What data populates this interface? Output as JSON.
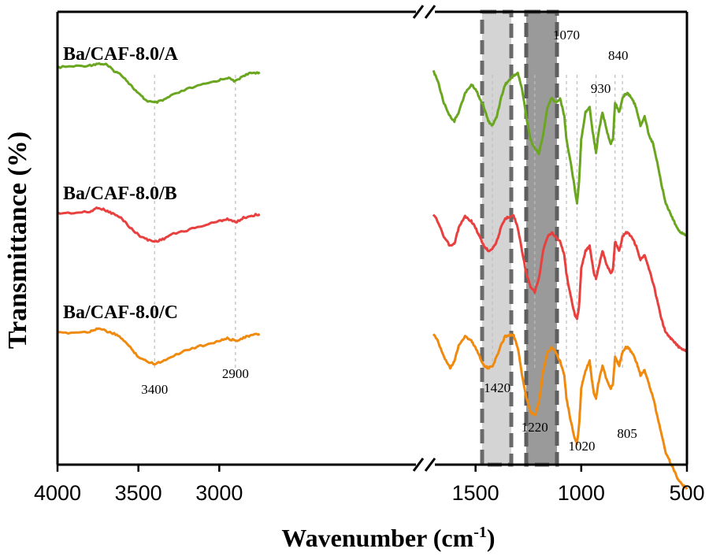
{
  "chart_data": {
    "type": "line",
    "title": "",
    "xlabel": "Wavenumber (cm",
    "xlabel_sup": "-1",
    "xlabel_close": ")",
    "ylabel": "Transmittance (%)",
    "x_axis_break": [
      1750,
      1700
    ],
    "xlim": [
      4000,
      500
    ],
    "x_ticks": [
      "4000",
      "3500",
      "3000",
      "1500",
      "1000",
      "500"
    ],
    "shaded_bands": [
      {
        "from": 1500,
        "to": 1360,
        "shade": "light"
      },
      {
        "from": 1290,
        "to": 1140,
        "shade": "dark"
      }
    ],
    "series": [
      {
        "name": "Ba/CAF-8.0/A",
        "color": "#6aa61f",
        "x": [
          4000,
          3900,
          3800,
          3750,
          3700,
          3650,
          3600,
          3550,
          3500,
          3450,
          3400,
          3350,
          3300,
          3200,
          3100,
          3000,
          2950,
          2900,
          2850,
          2800,
          2750,
          1700,
          1680,
          1650,
          1620,
          1600,
          1580,
          1550,
          1520,
          1500,
          1480,
          1460,
          1440,
          1420,
          1400,
          1380,
          1360,
          1340,
          1320,
          1300,
          1280,
          1260,
          1240,
          1220,
          1200,
          1180,
          1160,
          1140,
          1120,
          1100,
          1080,
          1070,
          1050,
          1030,
          1020,
          1010,
          1000,
          980,
          960,
          950,
          940,
          930,
          920,
          900,
          880,
          860,
          850,
          840,
          830,
          820,
          805,
          790,
          780,
          760,
          740,
          720,
          700,
          680,
          660,
          640,
          620,
          600,
          580,
          560,
          540,
          520,
          500
        ],
        "y": [
          0.8,
          1,
          1.2,
          1.6,
          1.4,
          0,
          -1,
          -3,
          -5,
          -6.5,
          -7,
          -6.5,
          -5.5,
          -4,
          -3,
          -2,
          -1.5,
          -2.3,
          -1,
          -0.5,
          -0.3,
          0,
          -2,
          -7,
          -10,
          -11,
          -9,
          -5,
          -3,
          -4,
          -6,
          -8,
          -11,
          -12,
          -10,
          -6,
          -3,
          -2,
          -1,
          -0.5,
          -4,
          -10,
          -15,
          -17,
          -18,
          -14,
          -8,
          -6,
          -7,
          -6,
          -10,
          -15,
          -20,
          -26,
          -29,
          -24,
          -15,
          -9,
          -8,
          -12,
          -15,
          -18,
          -14,
          -9,
          -13,
          -16,
          -15,
          -7,
          -8,
          -9,
          -6,
          -5,
          -5,
          -6,
          -8,
          -12,
          -10,
          -14,
          -16,
          -20,
          -25,
          -29,
          -31,
          -33,
          -35,
          -35.5,
          -36
        ],
        "offset": 66
      },
      {
        "name": "Ba/CAF-8.0/B",
        "color": "#e8403f",
        "x": [
          4000,
          3900,
          3800,
          3750,
          3700,
          3650,
          3600,
          3550,
          3500,
          3450,
          3400,
          3350,
          3300,
          3200,
          3100,
          3000,
          2950,
          2900,
          2850,
          2800,
          2750,
          1700,
          1680,
          1650,
          1620,
          1600,
          1580,
          1550,
          1520,
          1500,
          1480,
          1460,
          1440,
          1420,
          1400,
          1380,
          1360,
          1340,
          1320,
          1300,
          1280,
          1260,
          1240,
          1220,
          1200,
          1180,
          1160,
          1140,
          1120,
          1100,
          1080,
          1070,
          1050,
          1030,
          1020,
          1010,
          1000,
          980,
          960,
          950,
          940,
          930,
          920,
          900,
          880,
          860,
          850,
          840,
          830,
          820,
          805,
          790,
          780,
          760,
          740,
          720,
          700,
          680,
          660,
          640,
          620,
          600,
          580,
          560,
          540,
          520,
          500
        ],
        "y": [
          0.2,
          0.3,
          0.5,
          1.5,
          0.8,
          0,
          -1,
          -3,
          -4.5,
          -5.5,
          -6,
          -5.5,
          -4.5,
          -3.5,
          -2.5,
          -1.5,
          -1,
          -1.8,
          -0.8,
          -0.3,
          0,
          0,
          -1.5,
          -5,
          -7,
          -6.5,
          -3,
          -0.5,
          -1.5,
          -3,
          -5,
          -7,
          -8,
          -7.5,
          -6,
          -3,
          -1,
          -0.5,
          -0.3,
          -3,
          -8,
          -13,
          -16,
          -17,
          -14,
          -8,
          -5,
          -4,
          -5,
          -6,
          -9,
          -13,
          -18,
          -22,
          -23,
          -20,
          -12,
          -8,
          -7,
          -10,
          -13,
          -14,
          -12,
          -8,
          -11,
          -13,
          -12,
          -6,
          -7,
          -8,
          -5,
          -4,
          -4,
          -5,
          -7,
          -10,
          -9,
          -12,
          -15,
          -19,
          -23,
          -26,
          -27,
          -28,
          -29,
          -29.5,
          -30
        ],
        "offset": 34
      },
      {
        "name": "Ba/CAF-8.0/C",
        "color": "#f08a0f",
        "x": [
          4000,
          3900,
          3800,
          3750,
          3700,
          3650,
          3600,
          3550,
          3500,
          3450,
          3400,
          3350,
          3300,
          3200,
          3100,
          3000,
          2950,
          2900,
          2850,
          2800,
          2750,
          1700,
          1680,
          1650,
          1620,
          1600,
          1580,
          1550,
          1520,
          1500,
          1480,
          1460,
          1440,
          1420,
          1400,
          1380,
          1360,
          1340,
          1320,
          1300,
          1280,
          1260,
          1240,
          1220,
          1200,
          1180,
          1160,
          1140,
          1120,
          1100,
          1080,
          1070,
          1050,
          1030,
          1020,
          1010,
          1000,
          980,
          960,
          950,
          940,
          930,
          920,
          900,
          880,
          860,
          850,
          840,
          830,
          820,
          805,
          790,
          780,
          760,
          740,
          720,
          700,
          680,
          660,
          640,
          620,
          600,
          580,
          560,
          540,
          520,
          500
        ],
        "y": [
          0.2,
          0.3,
          0.5,
          1.3,
          0.6,
          0,
          -1,
          -3,
          -5,
          -6,
          -6.5,
          -6,
          -5,
          -3.5,
          -2.5,
          -1.5,
          -1,
          -1.5,
          -0.8,
          -0.3,
          0,
          0,
          -1.5,
          -5,
          -7.5,
          -6,
          -2.5,
          -0.5,
          -1.5,
          -3,
          -5,
          -7,
          -7.5,
          -7,
          -5,
          -2.5,
          -0.5,
          -0.3,
          -0.2,
          -3,
          -9,
          -14,
          -17,
          -18,
          -15,
          -8,
          -4,
          -3,
          -4,
          -6,
          -9,
          -14,
          -19,
          -23,
          -24,
          -20,
          -12,
          -8,
          -6,
          -10,
          -13,
          -14,
          -11,
          -7,
          -10,
          -12,
          -11,
          -5,
          -6,
          -7,
          -4,
          -3,
          -3,
          -4,
          -6,
          -9,
          -8,
          -11,
          -14,
          -18,
          -22,
          -26,
          -28,
          -30,
          -32,
          -33,
          -34
        ]
      }
    ],
    "series_labels": [
      "Ba/CAF-8.0/A",
      "Ba/CAF-8.0/B",
      "Ba/CAF-8.0/C"
    ],
    "annotations": [
      {
        "text": "3400",
        "x": 3400
      },
      {
        "text": "2900",
        "x": 2900
      },
      {
        "text": "1420",
        "x": 1420
      },
      {
        "text": "1220",
        "x": 1220
      },
      {
        "text": "1070",
        "x": 1070
      },
      {
        "text": "1020",
        "x": 1020
      },
      {
        "text": "930",
        "x": 930
      },
      {
        "text": "840",
        "x": 840
      },
      {
        "text": "805",
        "x": 805
      }
    ]
  }
}
